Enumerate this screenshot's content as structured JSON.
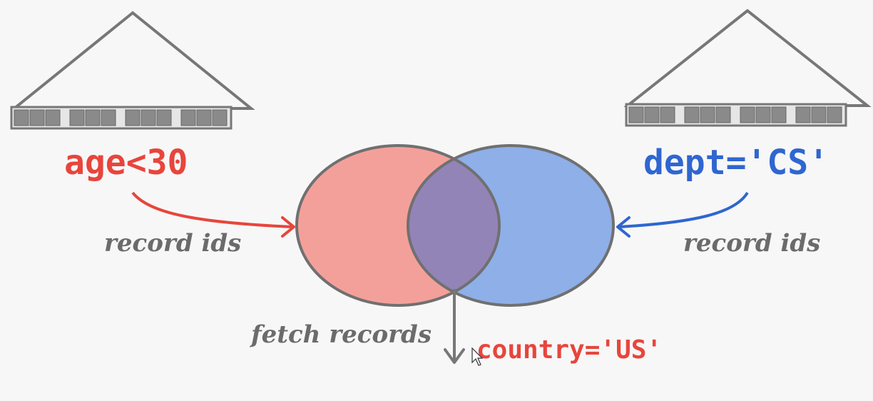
{
  "left_index": {
    "predicate": "age<30",
    "arrow_label": "record ids",
    "color": "#e8453c"
  },
  "right_index": {
    "predicate": "dept='CS'",
    "arrow_label": "record ids",
    "color": "#2f66d0"
  },
  "venn": {
    "left_fill": "#f4a09a",
    "right_fill": "#8eafe8",
    "overlap_fill": "#9384b8",
    "stroke": "#707070"
  },
  "fetch_label": "fetch records",
  "filter_predicate": "country='US'",
  "filter_color": "#e8453c",
  "line_color": "#777777",
  "label_color": "#6b6b6b"
}
